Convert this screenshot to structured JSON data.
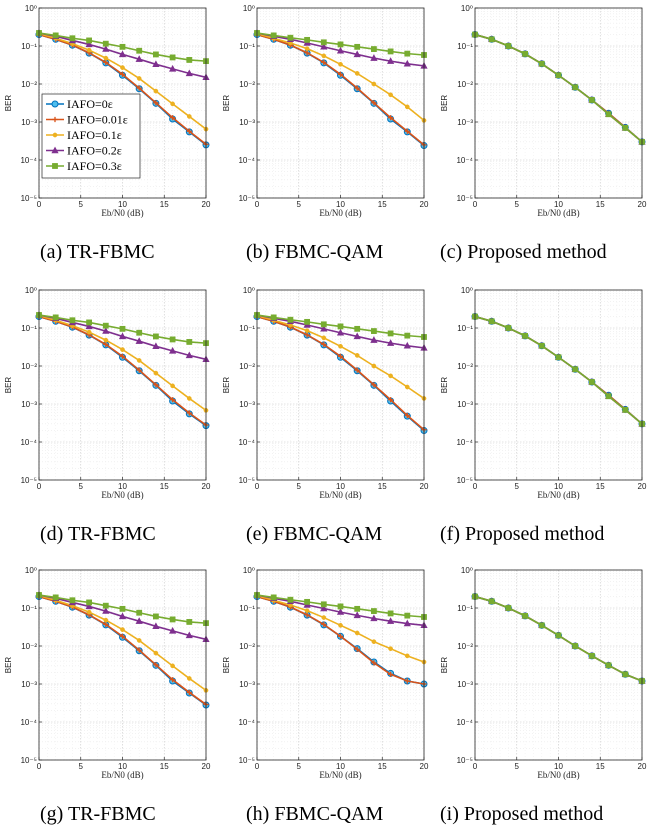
{
  "figure": {
    "x_ticks": [
      0,
      5,
      10,
      15,
      20
    ],
    "y_tick_labels": [
      "10⁰",
      "10⁻¹",
      "10⁻²",
      "10⁻³",
      "10⁻⁴",
      "10⁻⁵"
    ],
    "xlabel": "Eb/N0 (dB)",
    "ylabel": "BER",
    "series_colors": {
      "IAFO=0ε": "#0072BD",
      "IAFO=0.01ε": "#D95319",
      "IAFO=0.1ε": "#EDB120",
      "IAFO=0.2ε": "#7E2F8E",
      "IAFO=0.3ε": "#77AC30"
    },
    "series_markers": {
      "IAFO=0ε": "circle",
      "IAFO=0.01ε": "plus",
      "IAFO=0.1ε": "dot",
      "IAFO=0.2ε": "triangle",
      "IAFO=0.3ε": "square"
    }
  },
  "chart_data": [
    {
      "type": "line",
      "caption": "(a) TR-FBMC",
      "ylabel": "BER",
      "xlabel": "Eb/N0 (dB)",
      "yscale": "log",
      "ylim": [
        1e-05,
        1
      ],
      "xlim": [
        0,
        20
      ],
      "grid": true,
      "legend": "lower-left",
      "x": [
        0,
        2,
        4,
        6,
        8,
        10,
        12,
        14,
        16,
        18,
        20
      ],
      "series": [
        {
          "name": "IAFO=0ε",
          "values": [
            0.2,
            0.15,
            0.105,
            0.065,
            0.036,
            0.017,
            0.0075,
            0.0031,
            0.0012,
            0.00055,
            0.00025
          ]
        },
        {
          "name": "IAFO=0.01ε",
          "values": [
            0.2,
            0.15,
            0.106,
            0.066,
            0.037,
            0.018,
            0.0078,
            0.0032,
            0.0013,
            0.00057,
            0.00026
          ]
        },
        {
          "name": "IAFO=0.1ε",
          "values": [
            0.21,
            0.16,
            0.115,
            0.078,
            0.048,
            0.027,
            0.014,
            0.0065,
            0.003,
            0.0014,
            0.00065
          ]
        },
        {
          "name": "IAFO=0.2ε",
          "values": [
            0.22,
            0.18,
            0.14,
            0.11,
            0.083,
            0.06,
            0.045,
            0.033,
            0.025,
            0.019,
            0.015
          ]
        },
        {
          "name": "IAFO=0.3ε",
          "values": [
            0.22,
            0.19,
            0.16,
            0.14,
            0.115,
            0.095,
            0.075,
            0.06,
            0.05,
            0.043,
            0.04
          ]
        }
      ]
    },
    {
      "type": "line",
      "caption": "(b) FBMC-QAM",
      "ylabel": "BER",
      "xlabel": "Eb/N0 (dB)",
      "yscale": "log",
      "ylim": [
        1e-05,
        1
      ],
      "xlim": [
        0,
        20
      ],
      "grid": true,
      "x": [
        0,
        2,
        4,
        6,
        8,
        10,
        12,
        14,
        16,
        18,
        20
      ],
      "series": [
        {
          "name": "IAFO=0ε",
          "values": [
            0.2,
            0.15,
            0.105,
            0.065,
            0.036,
            0.017,
            0.0075,
            0.0031,
            0.0012,
            0.00055,
            0.00024
          ]
        },
        {
          "name": "IAFO=0.01ε",
          "values": [
            0.2,
            0.15,
            0.106,
            0.066,
            0.037,
            0.018,
            0.0078,
            0.0032,
            0.0013,
            0.00057,
            0.00025
          ]
        },
        {
          "name": "IAFO=0.1ε",
          "values": [
            0.21,
            0.16,
            0.12,
            0.085,
            0.055,
            0.033,
            0.019,
            0.01,
            0.0052,
            0.0025,
            0.0011
          ]
        },
        {
          "name": "IAFO=0.2ε",
          "values": [
            0.22,
            0.18,
            0.15,
            0.12,
            0.095,
            0.075,
            0.06,
            0.048,
            0.04,
            0.034,
            0.03
          ]
        },
        {
          "name": "IAFO=0.3ε",
          "values": [
            0.22,
            0.19,
            0.165,
            0.145,
            0.125,
            0.11,
            0.095,
            0.083,
            0.072,
            0.063,
            0.058
          ]
        }
      ]
    },
    {
      "type": "line",
      "caption": "(c) Proposed method",
      "ylabel": "BER",
      "xlabel": "Eb/N0 (dB)",
      "yscale": "log",
      "ylim": [
        1e-05,
        1
      ],
      "xlim": [
        0,
        20
      ],
      "grid": true,
      "x": [
        0,
        2,
        4,
        6,
        8,
        10,
        12,
        14,
        16,
        18,
        20
      ],
      "series": [
        {
          "name": "IAFO=0ε",
          "values": [
            0.2,
            0.15,
            0.1,
            0.062,
            0.034,
            0.017,
            0.0082,
            0.0038,
            0.0017,
            0.00072,
            0.0003
          ]
        },
        {
          "name": "IAFO=0.01ε",
          "values": [
            0.2,
            0.15,
            0.1,
            0.062,
            0.034,
            0.017,
            0.0082,
            0.0038,
            0.0017,
            0.00072,
            0.0003
          ]
        },
        {
          "name": "IAFO=0.1ε",
          "values": [
            0.2,
            0.15,
            0.1,
            0.062,
            0.034,
            0.017,
            0.0082,
            0.0038,
            0.0016,
            0.0007,
            0.0003
          ]
        },
        {
          "name": "IAFO=0.2ε",
          "values": [
            0.2,
            0.15,
            0.1,
            0.062,
            0.034,
            0.017,
            0.0082,
            0.0038,
            0.0016,
            0.0007,
            0.0003
          ]
        },
        {
          "name": "IAFO=0.3ε",
          "values": [
            0.2,
            0.15,
            0.1,
            0.062,
            0.034,
            0.017,
            0.0082,
            0.0038,
            0.0016,
            0.0007,
            0.0003
          ]
        }
      ]
    },
    {
      "type": "line",
      "caption": "(d) TR-FBMC",
      "ylabel": "BER",
      "xlabel": "Eb/N0 (dB)",
      "yscale": "log",
      "ylim": [
        1e-05,
        1
      ],
      "xlim": [
        0,
        20
      ],
      "grid": true,
      "x": [
        0,
        2,
        4,
        6,
        8,
        10,
        12,
        14,
        16,
        18,
        20
      ],
      "series": [
        {
          "name": "IAFO=0ε",
          "values": [
            0.2,
            0.15,
            0.105,
            0.065,
            0.036,
            0.017,
            0.0075,
            0.0031,
            0.0012,
            0.00055,
            0.00027
          ]
        },
        {
          "name": "IAFO=0.01ε",
          "values": [
            0.2,
            0.15,
            0.106,
            0.066,
            0.037,
            0.018,
            0.0078,
            0.0032,
            0.0013,
            0.00058,
            0.00028
          ]
        },
        {
          "name": "IAFO=0.1ε",
          "values": [
            0.21,
            0.16,
            0.115,
            0.078,
            0.048,
            0.027,
            0.014,
            0.0065,
            0.003,
            0.0014,
            0.00068
          ]
        },
        {
          "name": "IAFO=0.2ε",
          "values": [
            0.22,
            0.18,
            0.14,
            0.11,
            0.083,
            0.06,
            0.045,
            0.033,
            0.025,
            0.019,
            0.015
          ]
        },
        {
          "name": "IAFO=0.3ε",
          "values": [
            0.22,
            0.19,
            0.16,
            0.14,
            0.115,
            0.095,
            0.075,
            0.06,
            0.05,
            0.043,
            0.04
          ]
        }
      ]
    },
    {
      "type": "line",
      "caption": "(e) FBMC-QAM",
      "ylabel": "BER",
      "xlabel": "Eb/N0 (dB)",
      "yscale": "log",
      "ylim": [
        1e-05,
        1
      ],
      "xlim": [
        0,
        20
      ],
      "grid": true,
      "x": [
        0,
        2,
        4,
        6,
        8,
        10,
        12,
        14,
        16,
        18,
        20
      ],
      "series": [
        {
          "name": "IAFO=0ε",
          "values": [
            0.2,
            0.15,
            0.105,
            0.065,
            0.036,
            0.017,
            0.0075,
            0.0031,
            0.0012,
            0.00048,
            0.0002
          ]
        },
        {
          "name": "IAFO=0.01ε",
          "values": [
            0.2,
            0.15,
            0.106,
            0.066,
            0.037,
            0.018,
            0.0078,
            0.0032,
            0.0013,
            0.0005,
            0.00021
          ]
        },
        {
          "name": "IAFO=0.1ε",
          "values": [
            0.21,
            0.16,
            0.12,
            0.085,
            0.055,
            0.033,
            0.019,
            0.01,
            0.0055,
            0.0028,
            0.0014
          ]
        },
        {
          "name": "IAFO=0.2ε",
          "values": [
            0.22,
            0.18,
            0.15,
            0.12,
            0.095,
            0.075,
            0.06,
            0.048,
            0.04,
            0.034,
            0.03
          ]
        },
        {
          "name": "IAFO=0.3ε",
          "values": [
            0.22,
            0.19,
            0.165,
            0.145,
            0.125,
            0.11,
            0.095,
            0.083,
            0.072,
            0.063,
            0.058
          ]
        }
      ]
    },
    {
      "type": "line",
      "caption": "(f) Proposed method",
      "ylabel": "BER",
      "xlabel": "Eb/N0 (dB)",
      "yscale": "log",
      "ylim": [
        1e-05,
        1
      ],
      "xlim": [
        0,
        20
      ],
      "grid": true,
      "x": [
        0,
        2,
        4,
        6,
        8,
        10,
        12,
        14,
        16,
        18,
        20
      ],
      "series": [
        {
          "name": "IAFO=0ε",
          "values": [
            0.2,
            0.15,
            0.1,
            0.062,
            0.034,
            0.017,
            0.0082,
            0.0038,
            0.0017,
            0.00072,
            0.0003
          ]
        },
        {
          "name": "IAFO=0.01ε",
          "values": [
            0.2,
            0.15,
            0.1,
            0.062,
            0.034,
            0.017,
            0.0082,
            0.0038,
            0.0017,
            0.00072,
            0.0003
          ]
        },
        {
          "name": "IAFO=0.1ε",
          "values": [
            0.2,
            0.15,
            0.1,
            0.062,
            0.034,
            0.017,
            0.0082,
            0.0038,
            0.0016,
            0.0007,
            0.0003
          ]
        },
        {
          "name": "IAFO=0.2ε",
          "values": [
            0.2,
            0.15,
            0.1,
            0.062,
            0.034,
            0.017,
            0.0082,
            0.0038,
            0.0016,
            0.0007,
            0.0003
          ]
        },
        {
          "name": "IAFO=0.3ε",
          "values": [
            0.2,
            0.15,
            0.1,
            0.062,
            0.034,
            0.017,
            0.0082,
            0.0038,
            0.0016,
            0.0007,
            0.0003
          ]
        }
      ]
    },
    {
      "type": "line",
      "caption": "(g) TR-FBMC",
      "ylabel": "BER",
      "xlabel": "Eb/N0 (dB)",
      "yscale": "log",
      "ylim": [
        1e-05,
        1
      ],
      "xlim": [
        0,
        20
      ],
      "grid": true,
      "x": [
        0,
        2,
        4,
        6,
        8,
        10,
        12,
        14,
        16,
        18,
        20
      ],
      "series": [
        {
          "name": "IAFO=0ε",
          "values": [
            0.2,
            0.15,
            0.105,
            0.065,
            0.036,
            0.017,
            0.0075,
            0.0031,
            0.0012,
            0.00058,
            0.00028
          ]
        },
        {
          "name": "IAFO=0.01ε",
          "values": [
            0.2,
            0.15,
            0.106,
            0.066,
            0.037,
            0.018,
            0.0078,
            0.0032,
            0.0013,
            0.0006,
            0.00029
          ]
        },
        {
          "name": "IAFO=0.1ε",
          "values": [
            0.21,
            0.16,
            0.115,
            0.078,
            0.048,
            0.027,
            0.014,
            0.0065,
            0.003,
            0.0014,
            0.00068
          ]
        },
        {
          "name": "IAFO=0.2ε",
          "values": [
            0.22,
            0.18,
            0.14,
            0.11,
            0.083,
            0.06,
            0.045,
            0.033,
            0.025,
            0.019,
            0.015
          ]
        },
        {
          "name": "IAFO=0.3ε",
          "values": [
            0.22,
            0.19,
            0.16,
            0.14,
            0.115,
            0.095,
            0.075,
            0.06,
            0.05,
            0.043,
            0.04
          ]
        }
      ]
    },
    {
      "type": "line",
      "caption": "(h) FBMC-QAM",
      "ylabel": "BER",
      "xlabel": "Eb/N0 (dB)",
      "yscale": "log",
      "ylim": [
        1e-05,
        1
      ],
      "xlim": [
        0,
        20
      ],
      "grid": true,
      "x": [
        0,
        2,
        4,
        6,
        8,
        10,
        12,
        14,
        16,
        18,
        20
      ],
      "series": [
        {
          "name": "IAFO=0ε",
          "values": [
            0.2,
            0.15,
            0.105,
            0.065,
            0.036,
            0.018,
            0.0085,
            0.0038,
            0.0019,
            0.0012,
            0.001
          ]
        },
        {
          "name": "IAFO=0.01ε",
          "values": [
            0.2,
            0.15,
            0.106,
            0.066,
            0.037,
            0.018,
            0.0082,
            0.0036,
            0.0018,
            0.0012,
            0.001
          ]
        },
        {
          "name": "IAFO=0.1ε",
          "values": [
            0.21,
            0.16,
            0.12,
            0.085,
            0.056,
            0.035,
            0.022,
            0.013,
            0.0085,
            0.0055,
            0.0038
          ]
        },
        {
          "name": "IAFO=0.2ε",
          "values": [
            0.22,
            0.18,
            0.15,
            0.12,
            0.097,
            0.078,
            0.064,
            0.053,
            0.045,
            0.039,
            0.035
          ]
        },
        {
          "name": "IAFO=0.3ε",
          "values": [
            0.22,
            0.19,
            0.165,
            0.145,
            0.125,
            0.11,
            0.095,
            0.083,
            0.072,
            0.063,
            0.058
          ]
        }
      ]
    },
    {
      "type": "line",
      "caption": "(i) Proposed method",
      "ylabel": "BER",
      "xlabel": "Eb/N0 (dB)",
      "yscale": "log",
      "ylim": [
        1e-05,
        1
      ],
      "xlim": [
        0,
        20
      ],
      "grid": true,
      "x": [
        0,
        2,
        4,
        6,
        8,
        10,
        12,
        14,
        16,
        18,
        20
      ],
      "series": [
        {
          "name": "IAFO=0ε",
          "values": [
            0.2,
            0.15,
            0.1,
            0.062,
            0.035,
            0.019,
            0.01,
            0.0055,
            0.0031,
            0.0018,
            0.0012
          ]
        },
        {
          "name": "IAFO=0.01ε",
          "values": [
            0.2,
            0.15,
            0.1,
            0.062,
            0.035,
            0.019,
            0.01,
            0.0055,
            0.0031,
            0.0018,
            0.0012
          ]
        },
        {
          "name": "IAFO=0.1ε",
          "values": [
            0.2,
            0.15,
            0.1,
            0.062,
            0.035,
            0.019,
            0.01,
            0.0055,
            0.0031,
            0.0018,
            0.0012
          ]
        },
        {
          "name": "IAFO=0.2ε",
          "values": [
            0.2,
            0.15,
            0.1,
            0.062,
            0.035,
            0.019,
            0.01,
            0.0055,
            0.0031,
            0.0018,
            0.0012
          ]
        },
        {
          "name": "IAFO=0.3ε",
          "values": [
            0.2,
            0.15,
            0.1,
            0.062,
            0.035,
            0.019,
            0.01,
            0.0055,
            0.0031,
            0.0018,
            0.0012
          ]
        }
      ]
    }
  ]
}
